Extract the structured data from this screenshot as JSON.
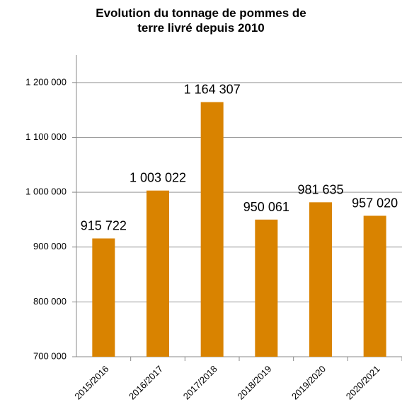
{
  "chart_data": {
    "type": "bar",
    "title": "Evolution du tonnage de pommes de terre livré depuis 2010",
    "categories": [
      "2015/2016",
      "2016/2017",
      "2017/2018",
      "2018/2019",
      "2019/2020",
      "2020/2021"
    ],
    "values": [
      915722,
      1003022,
      1164307,
      950061,
      981635,
      957020
    ],
    "value_labels": [
      "915 722",
      "1 003 022",
      "1 164 307",
      "950 061",
      "981 635",
      "957 020"
    ],
    "color": "#d98300",
    "ylim": [
      700000,
      1250000
    ],
    "yticks": [
      {
        "value": 700000,
        "label": "700 000"
      },
      {
        "value": 800000,
        "label": "800 000"
      },
      {
        "value": 900000,
        "label": "900 000"
      },
      {
        "value": 1000000,
        "label": "1 000 000"
      },
      {
        "value": 1100000,
        "label": "1 100 000"
      },
      {
        "value": 1200000,
        "label": "1 200 000"
      }
    ],
    "grid": true
  }
}
